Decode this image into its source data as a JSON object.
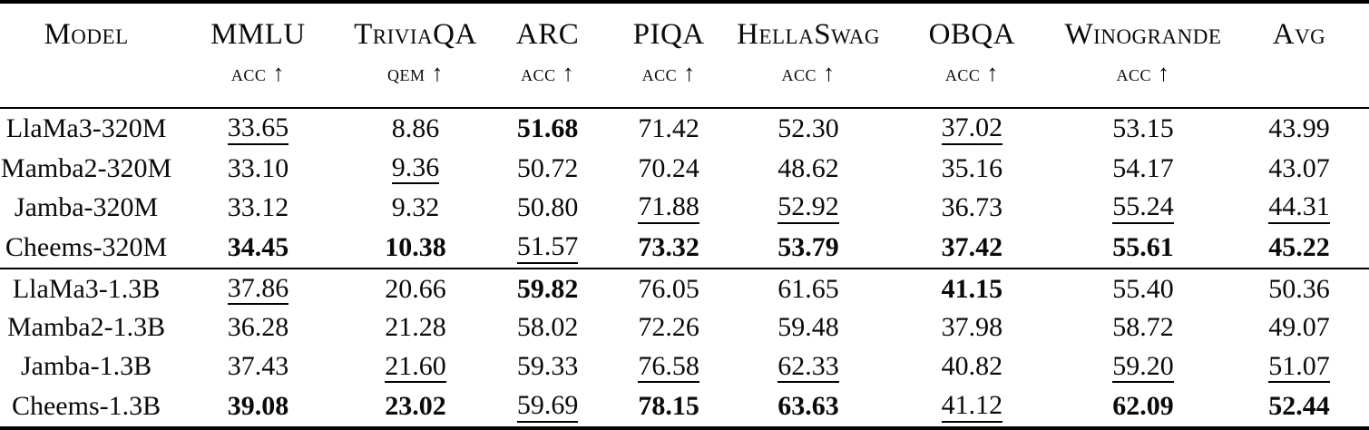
{
  "page": {
    "background": "#ffffff",
    "text_color": "#0a0a0a",
    "emphasis_legend": {
      "bold": "best score in column group",
      "underline": "second-best score in column group"
    }
  },
  "table": {
    "headers": [
      {
        "name": "Model",
        "metric": ""
      },
      {
        "name": "MMLU",
        "metric": "acc ↑"
      },
      {
        "name": "TriviaQA",
        "metric": "qem ↑"
      },
      {
        "name": "ARC",
        "metric": "acc ↑"
      },
      {
        "name": "PIQA",
        "metric": "acc ↑"
      },
      {
        "name": "HellaSwag",
        "metric": "acc ↑"
      },
      {
        "name": "OBQA",
        "metric": "acc ↑"
      },
      {
        "name": "Winogrande",
        "metric": "acc ↑"
      },
      {
        "name": "Avg",
        "metric": ""
      }
    ],
    "groups": [
      {
        "rows": [
          {
            "model": "LlaMa3-320M",
            "cells": [
              {
                "value": "33.65",
                "emphasis": "underline"
              },
              {
                "value": "8.86",
                "emphasis": "none"
              },
              {
                "value": "51.68",
                "emphasis": "bold"
              },
              {
                "value": "71.42",
                "emphasis": "none"
              },
              {
                "value": "52.30",
                "emphasis": "none"
              },
              {
                "value": "37.02",
                "emphasis": "underline"
              },
              {
                "value": "53.15",
                "emphasis": "none"
              },
              {
                "value": "43.99",
                "emphasis": "none"
              }
            ]
          },
          {
            "model": "Mamba2-320M",
            "cells": [
              {
                "value": "33.10",
                "emphasis": "none"
              },
              {
                "value": "9.36",
                "emphasis": "underline"
              },
              {
                "value": "50.72",
                "emphasis": "none"
              },
              {
                "value": "70.24",
                "emphasis": "none"
              },
              {
                "value": "48.62",
                "emphasis": "none"
              },
              {
                "value": "35.16",
                "emphasis": "none"
              },
              {
                "value": "54.17",
                "emphasis": "none"
              },
              {
                "value": "43.07",
                "emphasis": "none"
              }
            ]
          },
          {
            "model": "Jamba-320M",
            "cells": [
              {
                "value": "33.12",
                "emphasis": "none"
              },
              {
                "value": "9.32",
                "emphasis": "none"
              },
              {
                "value": "50.80",
                "emphasis": "none"
              },
              {
                "value": "71.88",
                "emphasis": "underline"
              },
              {
                "value": "52.92",
                "emphasis": "underline"
              },
              {
                "value": "36.73",
                "emphasis": "none"
              },
              {
                "value": "55.24",
                "emphasis": "underline"
              },
              {
                "value": "44.31",
                "emphasis": "underline"
              }
            ]
          },
          {
            "model": "Cheems-320M",
            "cells": [
              {
                "value": "34.45",
                "emphasis": "bold"
              },
              {
                "value": "10.38",
                "emphasis": "bold"
              },
              {
                "value": "51.57",
                "emphasis": "underline"
              },
              {
                "value": "73.32",
                "emphasis": "bold"
              },
              {
                "value": "53.79",
                "emphasis": "bold"
              },
              {
                "value": "37.42",
                "emphasis": "bold"
              },
              {
                "value": "55.61",
                "emphasis": "bold"
              },
              {
                "value": "45.22",
                "emphasis": "bold"
              }
            ]
          }
        ]
      },
      {
        "rows": [
          {
            "model": "LlaMa3-1.3B",
            "cells": [
              {
                "value": "37.86",
                "emphasis": "underline"
              },
              {
                "value": "20.66",
                "emphasis": "none"
              },
              {
                "value": "59.82",
                "emphasis": "bold"
              },
              {
                "value": "76.05",
                "emphasis": "none"
              },
              {
                "value": "61.65",
                "emphasis": "none"
              },
              {
                "value": "41.15",
                "emphasis": "bold"
              },
              {
                "value": "55.40",
                "emphasis": "none"
              },
              {
                "value": "50.36",
                "emphasis": "none"
              }
            ]
          },
          {
            "model": "Mamba2-1.3B",
            "cells": [
              {
                "value": "36.28",
                "emphasis": "none"
              },
              {
                "value": "21.28",
                "emphasis": "none"
              },
              {
                "value": "58.02",
                "emphasis": "none"
              },
              {
                "value": "72.26",
                "emphasis": "none"
              },
              {
                "value": "59.48",
                "emphasis": "none"
              },
              {
                "value": "37.98",
                "emphasis": "none"
              },
              {
                "value": "58.72",
                "emphasis": "none"
              },
              {
                "value": "49.07",
                "emphasis": "none"
              }
            ]
          },
          {
            "model": "Jamba-1.3B",
            "cells": [
              {
                "value": "37.43",
                "emphasis": "none"
              },
              {
                "value": "21.60",
                "emphasis": "underline"
              },
              {
                "value": "59.33",
                "emphasis": "none"
              },
              {
                "value": "76.58",
                "emphasis": "underline"
              },
              {
                "value": "62.33",
                "emphasis": "underline"
              },
              {
                "value": "40.82",
                "emphasis": "none"
              },
              {
                "value": "59.20",
                "emphasis": "underline"
              },
              {
                "value": "51.07",
                "emphasis": "underline"
              }
            ]
          },
          {
            "model": "Cheems-1.3B",
            "cells": [
              {
                "value": "39.08",
                "emphasis": "bold"
              },
              {
                "value": "23.02",
                "emphasis": "bold"
              },
              {
                "value": "59.69",
                "emphasis": "underline"
              },
              {
                "value": "78.15",
                "emphasis": "bold"
              },
              {
                "value": "63.63",
                "emphasis": "bold"
              },
              {
                "value": "41.12",
                "emphasis": "underline"
              },
              {
                "value": "62.09",
                "emphasis": "bold"
              },
              {
                "value": "52.44",
                "emphasis": "bold"
              }
            ]
          }
        ]
      }
    ]
  }
}
